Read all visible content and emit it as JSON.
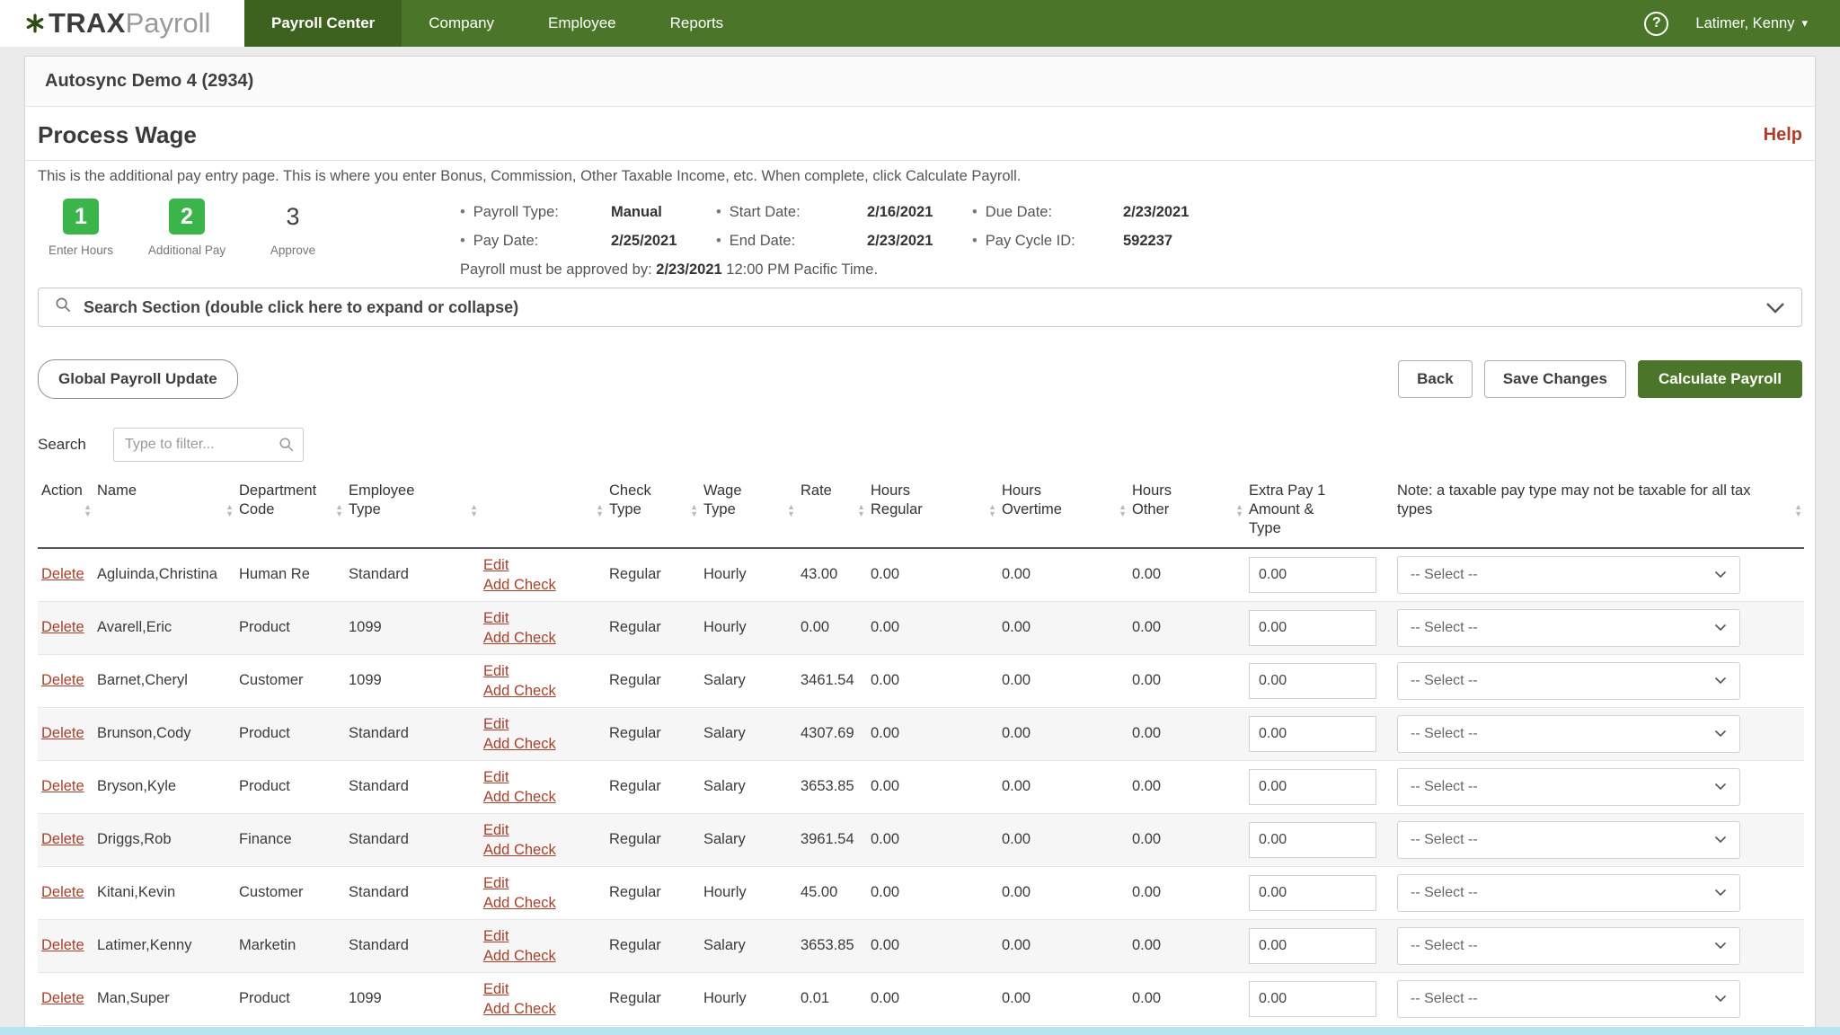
{
  "brand": {
    "trax": "TRAX",
    "payroll": "Payroll"
  },
  "nav": {
    "items": [
      {
        "label": "Payroll Center",
        "active": true
      },
      {
        "label": "Company",
        "active": false
      },
      {
        "label": "Employee",
        "active": false
      },
      {
        "label": "Reports",
        "active": false
      }
    ],
    "help": "?",
    "user": "Latimer, Kenny",
    "user_caret": "▾"
  },
  "company_bar": {
    "title": "Autosync Demo 4 (2934)"
  },
  "page": {
    "title": "Process Wage",
    "help_link": "Help",
    "description": "This is the additional pay entry page. This is where you enter Bonus, Commission, Other Taxable Income, etc. When complete, click Calculate Payroll."
  },
  "steps": [
    {
      "number": "1",
      "label": "Enter Hours"
    },
    {
      "number": "2",
      "label": "Additional Pay"
    },
    {
      "number": "3",
      "label": "Approve"
    }
  ],
  "payroll_info": {
    "fields": [
      {
        "label": "Payroll Type:",
        "value": "Manual"
      },
      {
        "label": "Start Date:",
        "value": "2/16/2021"
      },
      {
        "label": "Due Date:",
        "value": "2/23/2021"
      },
      {
        "label": "Pay Date:",
        "value": "2/25/2021"
      },
      {
        "label": "End Date:",
        "value": "2/23/2021"
      },
      {
        "label": "Pay Cycle ID:",
        "value": "592237"
      }
    ],
    "approval_prefix": "Payroll must be approved by:",
    "approval_date": "2/23/2021",
    "approval_suffix": "12:00 PM Pacific Time."
  },
  "search_section": {
    "label": "Search Section (double click here to expand or collapse)"
  },
  "toolbar": {
    "global_update": "Global Payroll Update",
    "back": "Back",
    "save": "Save Changes",
    "calculate": "Calculate Payroll"
  },
  "filter": {
    "label": "Search",
    "placeholder": "Type to filter..."
  },
  "table": {
    "columns": [
      {
        "label": "Action",
        "sortable": true
      },
      {
        "label": "Name",
        "sortable": true
      },
      {
        "label": "Department\nCode",
        "sortable": true
      },
      {
        "label": "Employee\nType",
        "sortable": true
      },
      {
        "label": "",
        "sortable": true
      },
      {
        "label": "Check\nType",
        "sortable": true
      },
      {
        "label": "Wage\nType",
        "sortable": true
      },
      {
        "label": "Rate",
        "sortable": true
      },
      {
        "label": "Hours\nRegular",
        "sortable": true
      },
      {
        "label": "Hours\nOvertime",
        "sortable": true
      },
      {
        "label": "Hours\nOther",
        "sortable": true
      },
      {
        "label": "Extra Pay 1\nAmount &\nType",
        "sortable": false
      },
      {
        "label": "Note: a taxable pay type may not be taxable for all tax types",
        "sortable": true
      }
    ],
    "row_links": {
      "delete": "Delete",
      "edit": "Edit",
      "add_check": "Add Check"
    },
    "select_placeholder": "-- Select --",
    "rows": [
      {
        "name": "Agluinda,Christina",
        "department": "Human Re",
        "employee_type": "Standard",
        "check_type": "Regular",
        "wage_type": "Hourly",
        "rate": "43.00",
        "hours_regular": "0.00",
        "hours_overtime": "0.00",
        "hours_other": "0.00",
        "extra_pay": "0.00"
      },
      {
        "name": "Avarell,Eric",
        "department": "Product",
        "employee_type": "1099",
        "check_type": "Regular",
        "wage_type": "Hourly",
        "rate": "0.00",
        "hours_regular": "0.00",
        "hours_overtime": "0.00",
        "hours_other": "0.00",
        "extra_pay": "0.00"
      },
      {
        "name": "Barnet,Cheryl",
        "department": "Customer",
        "employee_type": "1099",
        "check_type": "Regular",
        "wage_type": "Salary",
        "rate": "3461.54",
        "hours_regular": "0.00",
        "hours_overtime": "0.00",
        "hours_other": "0.00",
        "extra_pay": "0.00"
      },
      {
        "name": "Brunson,Cody",
        "department": "Product",
        "employee_type": "Standard",
        "check_type": "Regular",
        "wage_type": "Salary",
        "rate": "4307.69",
        "hours_regular": "0.00",
        "hours_overtime": "0.00",
        "hours_other": "0.00",
        "extra_pay": "0.00"
      },
      {
        "name": "Bryson,Kyle",
        "department": "Product",
        "employee_type": "Standard",
        "check_type": "Regular",
        "wage_type": "Salary",
        "rate": "3653.85",
        "hours_regular": "0.00",
        "hours_overtime": "0.00",
        "hours_other": "0.00",
        "extra_pay": "0.00"
      },
      {
        "name": "Driggs,Rob",
        "department": "Finance",
        "employee_type": "Standard",
        "check_type": "Regular",
        "wage_type": "Salary",
        "rate": "3961.54",
        "hours_regular": "0.00",
        "hours_overtime": "0.00",
        "hours_other": "0.00",
        "extra_pay": "0.00"
      },
      {
        "name": "Kitani,Kevin",
        "department": "Customer",
        "employee_type": "Standard",
        "check_type": "Regular",
        "wage_type": "Hourly",
        "rate": "45.00",
        "hours_regular": "0.00",
        "hours_overtime": "0.00",
        "hours_other": "0.00",
        "extra_pay": "0.00"
      },
      {
        "name": "Latimer,Kenny",
        "department": "Marketin",
        "employee_type": "Standard",
        "check_type": "Regular",
        "wage_type": "Salary",
        "rate": "3653.85",
        "hours_regular": "0.00",
        "hours_overtime": "0.00",
        "hours_other": "0.00",
        "extra_pay": "0.00"
      },
      {
        "name": "Man,Super",
        "department": "Product",
        "employee_type": "1099",
        "check_type": "Regular",
        "wage_type": "Hourly",
        "rate": "0.01",
        "hours_regular": "0.00",
        "hours_overtime": "0.00",
        "hours_other": "0.00",
        "extra_pay": "0.00"
      }
    ]
  },
  "colors": {
    "nav_green": "#4b7629",
    "active_tab_green": "#3d611f",
    "step_green": "#3bb54a",
    "link_red": "#a8402c",
    "bottom_strip_blue": "#b8e3f0"
  }
}
